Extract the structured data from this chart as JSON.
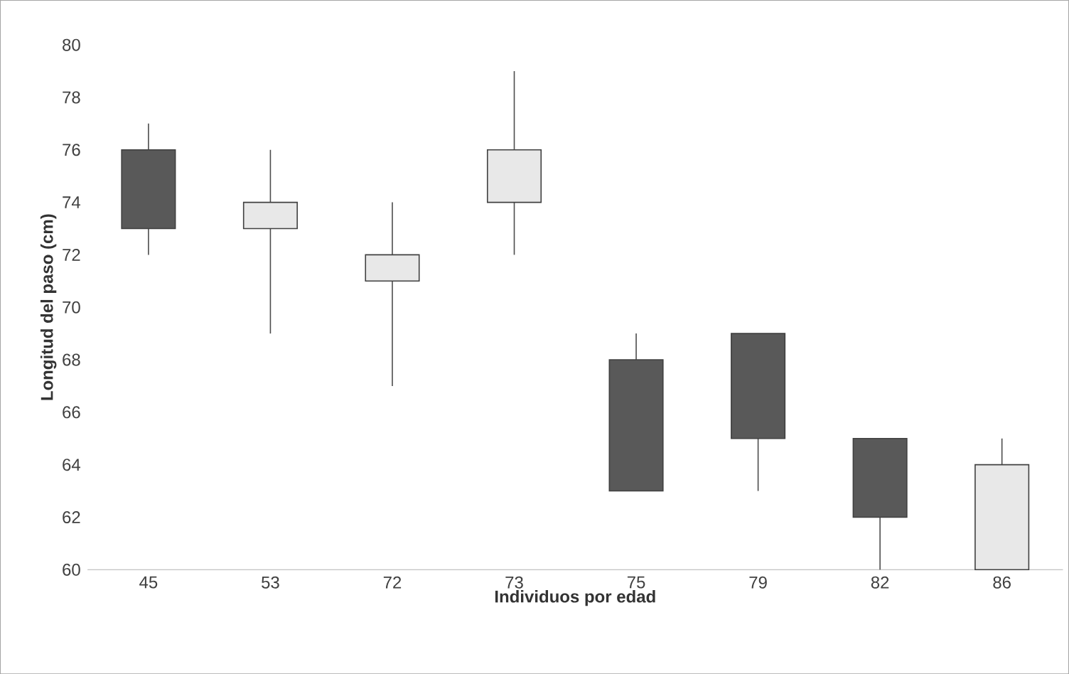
{
  "chart_data": {
    "type": "candlestick",
    "xlabel": "Individuos por edad",
    "ylabel": "Longitud del paso (cm)",
    "categories": [
      "45",
      "53",
      "72",
      "73",
      "75",
      "79",
      "82",
      "86"
    ],
    "ohlc": [
      [
        76,
        77,
        72,
        73
      ],
      [
        73,
        76,
        69,
        74
      ],
      [
        71,
        74,
        67,
        72
      ],
      [
        74,
        79,
        72,
        76
      ],
      [
        68,
        69,
        63,
        63
      ],
      [
        69,
        69,
        63,
        65
      ],
      [
        65,
        65,
        60,
        62
      ],
      [
        60,
        65,
        60,
        64
      ]
    ],
    "colors": [
      "#595959",
      "#e8e8e8",
      "#e8e8e8",
      "#e8e8e8",
      "#595959",
      "#595959",
      "#595959",
      "#e8e8e8"
    ],
    "ylim": [
      60,
      80
    ],
    "yticks": [
      60,
      62,
      64,
      66,
      68,
      70,
      72,
      74,
      76,
      78,
      80
    ],
    "grid": false
  }
}
